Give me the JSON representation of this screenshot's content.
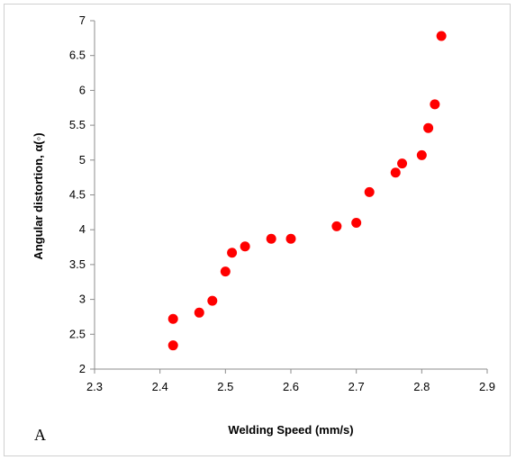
{
  "chart_data": {
    "type": "scatter",
    "xlabel": "Welding Speed (mm/s)",
    "ylabel": "Angular distortion,  α(◦)",
    "xlim": [
      2.3,
      2.9
    ],
    "ylim": [
      2,
      7
    ],
    "xticks": [
      "2.3",
      "2.4",
      "2.5",
      "2.6",
      "2.7",
      "2.8",
      "2.9"
    ],
    "yticks": [
      "2",
      "2.5",
      "3",
      "3.5",
      "4",
      "4.5",
      "5",
      "5.5",
      "6",
      "6.5",
      "7"
    ],
    "grid": false,
    "marker_color": "#ff0000",
    "panel_label": "A",
    "series": [
      {
        "x": [
          2.42,
          2.42,
          2.46,
          2.48,
          2.5,
          2.51,
          2.53,
          2.57,
          2.6,
          2.67,
          2.7,
          2.72,
          2.76,
          2.77,
          2.8,
          2.81,
          2.82,
          2.83
        ],
        "y": [
          2.34,
          2.72,
          2.81,
          2.98,
          3.4,
          3.67,
          3.76,
          3.87,
          3.87,
          4.05,
          4.1,
          4.54,
          4.82,
          4.95,
          5.07,
          5.46,
          5.8,
          6.78
        ]
      }
    ]
  }
}
